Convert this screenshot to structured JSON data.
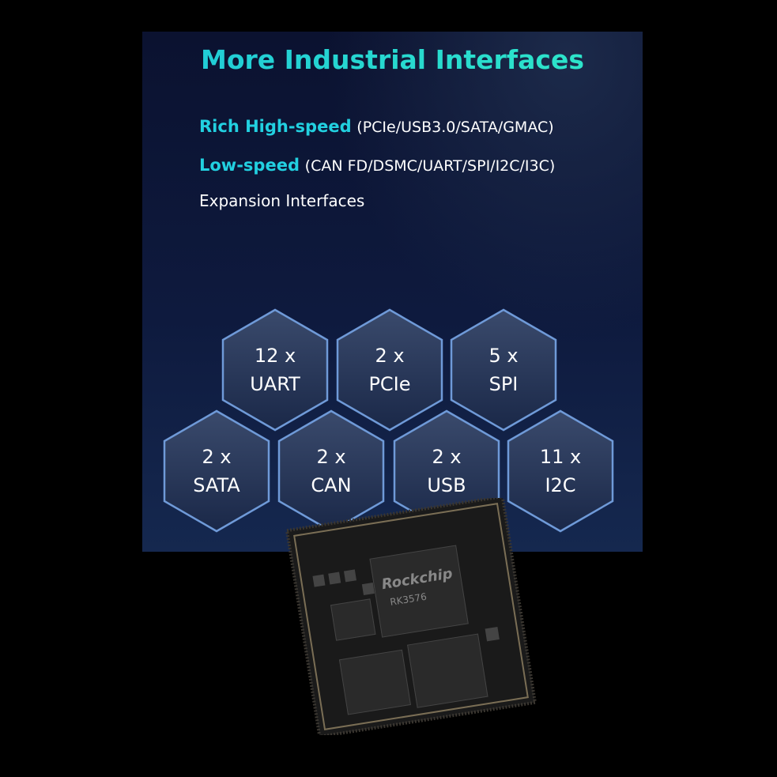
{
  "title": "More Industrial Interfaces",
  "lines": [
    {
      "highlight": "Rich High-speed",
      "detail": "(PCIe/USB3.0/SATA/GMAC)"
    },
    {
      "highlight": "Low-speed",
      "detail": "(CAN FD/DSMC/UART/SPI/I2C/I3C)"
    },
    {
      "highlight": "",
      "detail": "Expansion Interfaces"
    }
  ],
  "hexagons": [
    {
      "count": "12 x",
      "name": "UART"
    },
    {
      "count": "2 x",
      "name": "PCIe"
    },
    {
      "count": "5 x",
      "name": "SPI"
    },
    {
      "count": "2 x",
      "name": "SATA"
    },
    {
      "count": "2 x",
      "name": "CAN"
    },
    {
      "count": "2 x",
      "name": "USB"
    },
    {
      "count": "11 x",
      "name": "I2C"
    }
  ],
  "chip": {
    "brand": "Rockchip",
    "model": "RK3576"
  },
  "colors": {
    "accent": "#22d0e0",
    "panel": "#0e1a3e",
    "hex_border": "#6f9ad8"
  }
}
